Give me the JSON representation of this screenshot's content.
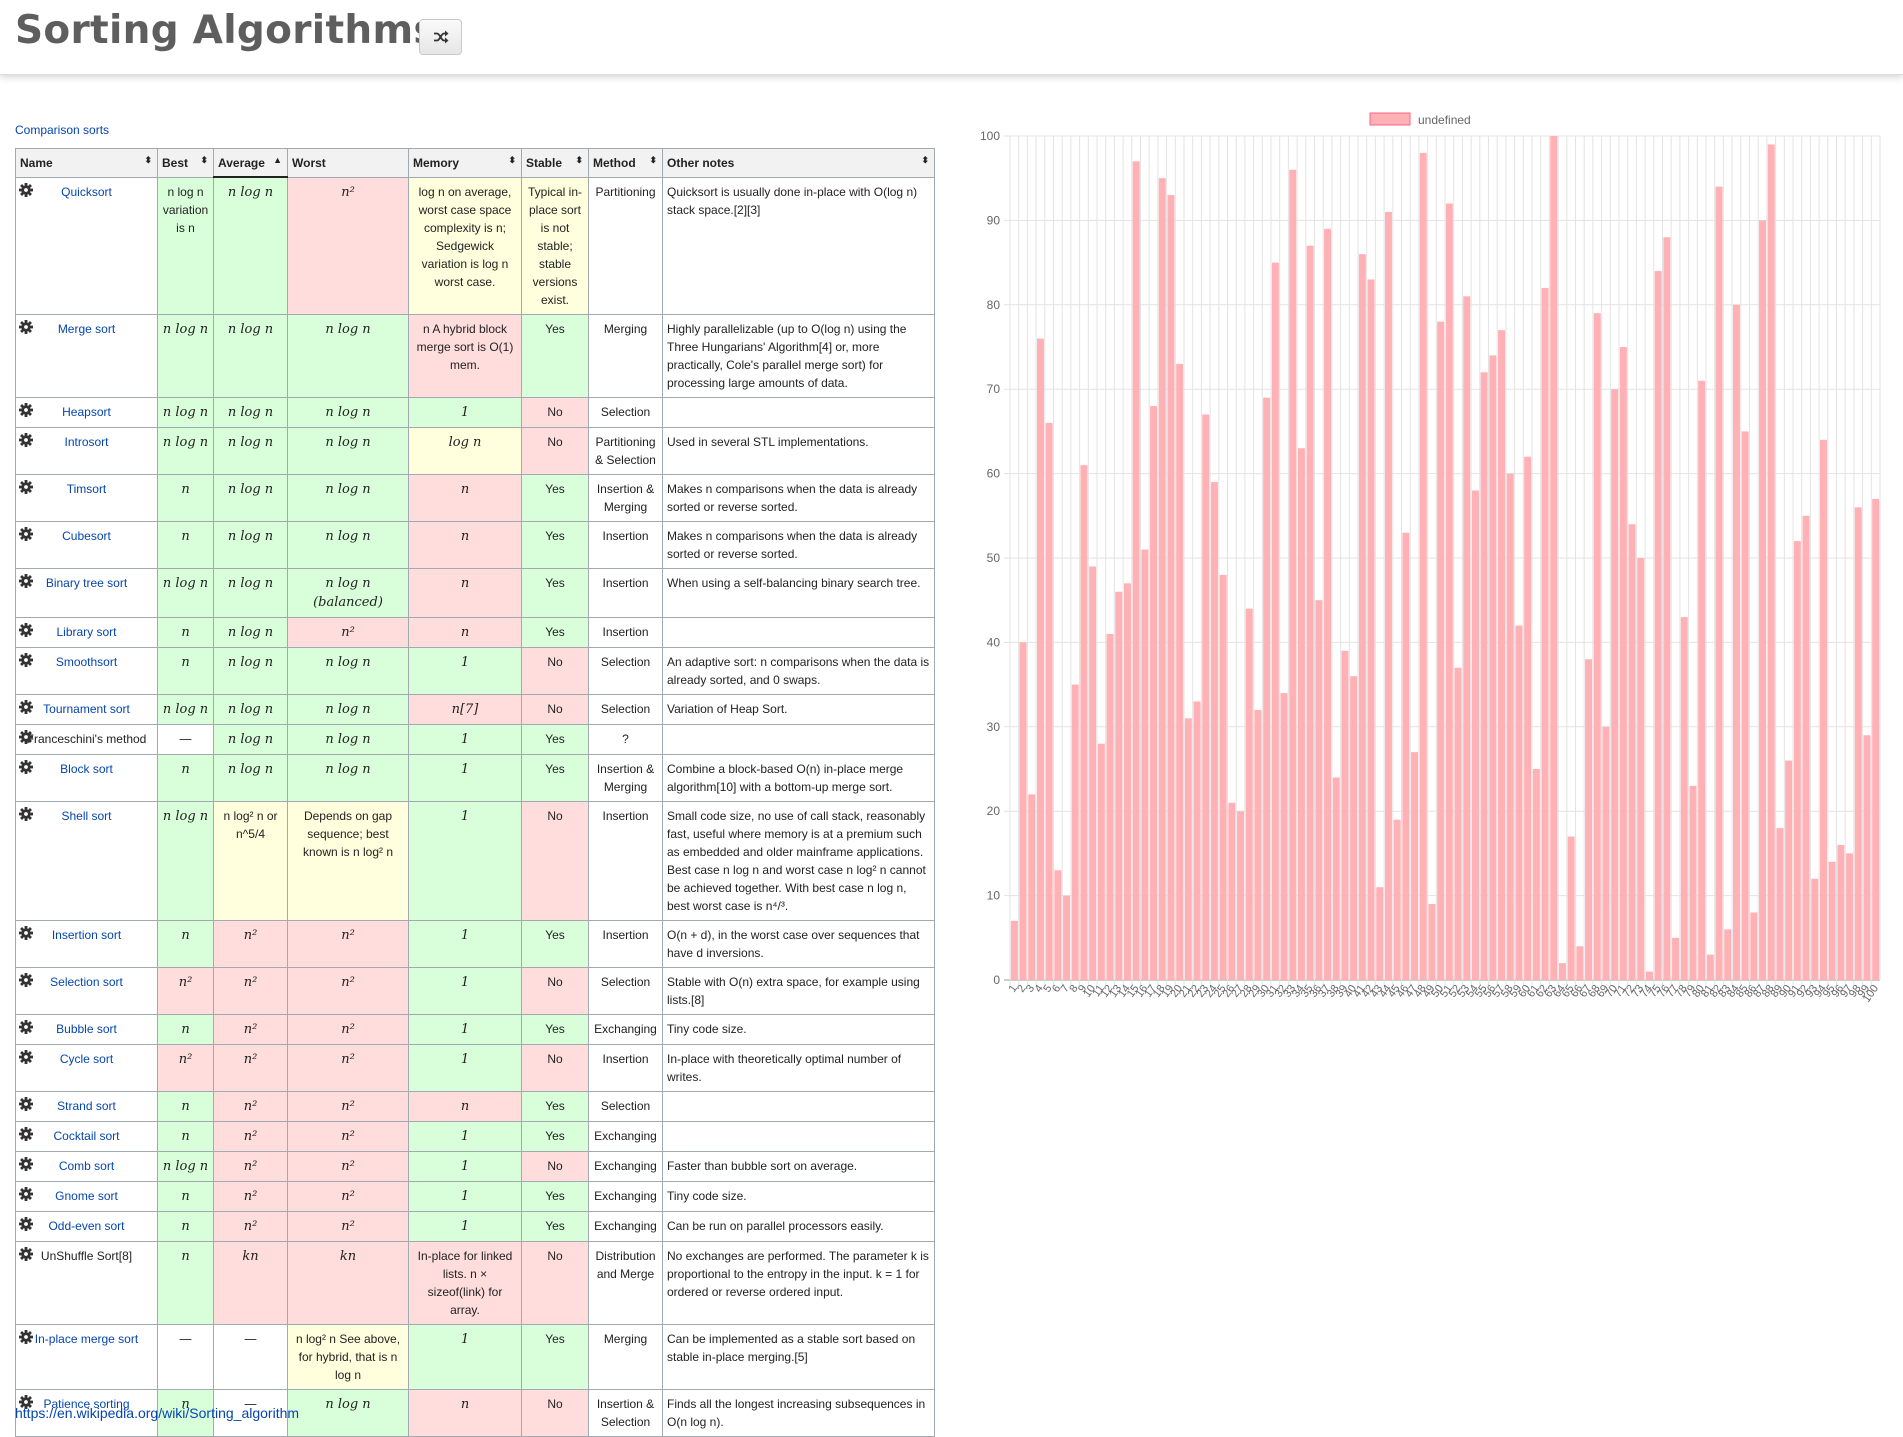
{
  "header": {
    "title": "Sorting Algorithms",
    "shuffle_icon": "shuffle-icon"
  },
  "table": {
    "caption": "Comparison sorts",
    "columns": [
      "Name",
      "Best",
      "Average",
      "Worst",
      "Memory",
      "Stable",
      "Method",
      "Other notes"
    ],
    "sort_indicators": [
      "⬍",
      "⬍",
      "▲",
      "",
      "⬍",
      "⬍",
      "⬍",
      "⬍"
    ],
    "rows": [
      {
        "name": "Quicksort",
        "link": true,
        "best": "n log n variation is n",
        "best_c": "g",
        "avg": "n log n",
        "avg_c": "g",
        "worst": "n²",
        "worst_c": "r",
        "mem": "log n on average, worst case space complexity is n; Sedgewick variation is log n worst case.",
        "mem_c": "y",
        "stable": "Typical in-place sort is not stable; stable versions exist.",
        "stable_c": "y",
        "method": "Partitioning",
        "notes": "Quicksort is usually done in-place with O(log n) stack space.[2][3]"
      },
      {
        "name": "Merge sort",
        "link": true,
        "best": "n log n",
        "best_c": "g",
        "avg": "n log n",
        "avg_c": "g",
        "worst": "n log n",
        "worst_c": "g",
        "mem": "n A hybrid block merge sort is O(1) mem.",
        "mem_c": "r",
        "stable": "Yes",
        "stable_c": "g",
        "method": "Merging",
        "notes": "Highly parallelizable (up to O(log n) using the Three Hungarians' Algorithm[4] or, more practically, Cole's parallel merge sort) for processing large amounts of data."
      },
      {
        "name": "Heapsort",
        "link": true,
        "best": "n log n",
        "best_c": "g",
        "avg": "n log n",
        "avg_c": "g",
        "worst": "n log n",
        "worst_c": "g",
        "mem": "1",
        "mem_c": "g",
        "stable": "No",
        "stable_c": "r",
        "method": "Selection",
        "notes": ""
      },
      {
        "name": "Introsort",
        "link": true,
        "best": "n log n",
        "best_c": "g",
        "avg": "n log n",
        "avg_c": "g",
        "worst": "n log n",
        "worst_c": "g",
        "mem": "log n",
        "mem_c": "y",
        "stable": "No",
        "stable_c": "r",
        "method": "Partitioning & Selection",
        "notes": "Used in several STL implementations."
      },
      {
        "name": "Timsort",
        "link": true,
        "best": "n",
        "best_c": "g",
        "avg": "n log n",
        "avg_c": "g",
        "worst": "n log n",
        "worst_c": "g",
        "mem": "n",
        "mem_c": "r",
        "stable": "Yes",
        "stable_c": "g",
        "method": "Insertion & Merging",
        "notes": "Makes n comparisons when the data is already sorted or reverse sorted."
      },
      {
        "name": "Cubesort",
        "link": true,
        "best": "n",
        "best_c": "g",
        "avg": "n log n",
        "avg_c": "g",
        "worst": "n log n",
        "worst_c": "g",
        "mem": "n",
        "mem_c": "r",
        "stable": "Yes",
        "stable_c": "g",
        "method": "Insertion",
        "notes": "Makes n comparisons when the data is already sorted or reverse sorted."
      },
      {
        "name": "Binary tree sort",
        "link": true,
        "best": "n log n",
        "best_c": "g",
        "avg": "n log n",
        "avg_c": "g",
        "worst": "n log n (balanced)",
        "worst_c": "g",
        "mem": "n",
        "mem_c": "r",
        "stable": "Yes",
        "stable_c": "g",
        "method": "Insertion",
        "notes": "When using a self-balancing binary search tree."
      },
      {
        "name": "Library sort",
        "link": true,
        "best": "n",
        "best_c": "g",
        "avg": "n log n",
        "avg_c": "g",
        "worst": "n²",
        "worst_c": "r",
        "mem": "n",
        "mem_c": "r",
        "stable": "Yes",
        "stable_c": "g",
        "method": "Insertion",
        "notes": ""
      },
      {
        "name": "Smoothsort",
        "link": true,
        "best": "n",
        "best_c": "g",
        "avg": "n log n",
        "avg_c": "g",
        "worst": "n log n",
        "worst_c": "g",
        "mem": "1",
        "mem_c": "g",
        "stable": "No",
        "stable_c": "r",
        "method": "Selection",
        "notes": "An adaptive sort: n comparisons when the data is already sorted, and 0 swaps."
      },
      {
        "name": "Tournament sort",
        "link": true,
        "best": "n log n",
        "best_c": "g",
        "avg": "n log n",
        "avg_c": "g",
        "worst": "n log n",
        "worst_c": "g",
        "mem": "n[7]",
        "mem_c": "r",
        "stable": "No",
        "stable_c": "r",
        "method": "Selection",
        "notes": "Variation of Heap Sort."
      },
      {
        "name": "Franceschini's method",
        "link": false,
        "best": "—",
        "best_c": "",
        "avg": "n log n",
        "avg_c": "g",
        "worst": "n log n",
        "worst_c": "g",
        "mem": "1",
        "mem_c": "g",
        "stable": "Yes",
        "stable_c": "g",
        "method": "?",
        "notes": ""
      },
      {
        "name": "Block sort",
        "link": true,
        "best": "n",
        "best_c": "g",
        "avg": "n log n",
        "avg_c": "g",
        "worst": "n log n",
        "worst_c": "g",
        "mem": "1",
        "mem_c": "g",
        "stable": "Yes",
        "stable_c": "g",
        "method": "Insertion & Merging",
        "notes": "Combine a block-based O(n) in-place merge algorithm[10] with a bottom-up merge sort."
      },
      {
        "name": "Shell sort",
        "link": true,
        "best": "n log n",
        "best_c": "g",
        "avg": "n log² n or n^5/4",
        "avg_c": "y",
        "worst": "Depends on gap sequence; best known is n log² n",
        "worst_c": "y",
        "mem": "1",
        "mem_c": "g",
        "stable": "No",
        "stable_c": "r",
        "method": "Insertion",
        "notes": "Small code size, no use of call stack, reasonably fast, useful where memory is at a premium such as embedded and older mainframe applications. Best case n log n and worst case n log² n cannot be achieved together. With best case n log n, best worst case is n⁴/³."
      },
      {
        "name": "Insertion sort",
        "link": true,
        "best": "n",
        "best_c": "g",
        "avg": "n²",
        "avg_c": "r",
        "worst": "n²",
        "worst_c": "r",
        "mem": "1",
        "mem_c": "g",
        "stable": "Yes",
        "stable_c": "g",
        "method": "Insertion",
        "notes": "O(n + d), in the worst case over sequences that have d inversions."
      },
      {
        "name": "Selection sort",
        "link": true,
        "best": "n²",
        "best_c": "r",
        "avg": "n²",
        "avg_c": "r",
        "worst": "n²",
        "worst_c": "r",
        "mem": "1",
        "mem_c": "g",
        "stable": "No",
        "stable_c": "r",
        "method": "Selection",
        "notes": "Stable with O(n) extra space, for example using lists.[8]"
      },
      {
        "name": "Bubble sort",
        "link": true,
        "best": "n",
        "best_c": "g",
        "avg": "n²",
        "avg_c": "r",
        "worst": "n²",
        "worst_c": "r",
        "mem": "1",
        "mem_c": "g",
        "stable": "Yes",
        "stable_c": "g",
        "method": "Exchanging",
        "notes": "Tiny code size."
      },
      {
        "name": "Cycle sort",
        "link": true,
        "best": "n²",
        "best_c": "r",
        "avg": "n²",
        "avg_c": "r",
        "worst": "n²",
        "worst_c": "r",
        "mem": "1",
        "mem_c": "g",
        "stable": "No",
        "stable_c": "r",
        "method": "Insertion",
        "notes": "In-place with theoretically optimal number of writes."
      },
      {
        "name": "Strand sort",
        "link": true,
        "best": "n",
        "best_c": "g",
        "avg": "n²",
        "avg_c": "r",
        "worst": "n²",
        "worst_c": "r",
        "mem": "n",
        "mem_c": "r",
        "stable": "Yes",
        "stable_c": "g",
        "method": "Selection",
        "notes": ""
      },
      {
        "name": "Cocktail sort",
        "link": true,
        "best": "n",
        "best_c": "g",
        "avg": "n²",
        "avg_c": "r",
        "worst": "n²",
        "worst_c": "r",
        "mem": "1",
        "mem_c": "g",
        "stable": "Yes",
        "stable_c": "g",
        "method": "Exchanging",
        "notes": ""
      },
      {
        "name": "Comb sort",
        "link": true,
        "best": "n log n",
        "best_c": "g",
        "avg": "n²",
        "avg_c": "r",
        "worst": "n²",
        "worst_c": "r",
        "mem": "1",
        "mem_c": "g",
        "stable": "No",
        "stable_c": "r",
        "method": "Exchanging",
        "notes": "Faster than bubble sort on average."
      },
      {
        "name": "Gnome sort",
        "link": true,
        "best": "n",
        "best_c": "g",
        "avg": "n²",
        "avg_c": "r",
        "worst": "n²",
        "worst_c": "r",
        "mem": "1",
        "mem_c": "g",
        "stable": "Yes",
        "stable_c": "g",
        "method": "Exchanging",
        "notes": "Tiny code size."
      },
      {
        "name": "Odd-even sort",
        "link": true,
        "best": "n",
        "best_c": "g",
        "avg": "n²",
        "avg_c": "r",
        "worst": "n²",
        "worst_c": "r",
        "mem": "1",
        "mem_c": "g",
        "stable": "Yes",
        "stable_c": "g",
        "method": "Exchanging",
        "notes": "Can be run on parallel processors easily."
      },
      {
        "name": "UnShuffle Sort[8]",
        "link": false,
        "best": "n",
        "best_c": "g",
        "avg": "kn",
        "avg_c": "r",
        "worst": "kn",
        "worst_c": "r",
        "mem": "In-place for linked lists. n × sizeof(link) for array.",
        "mem_c": "r",
        "stable": "No",
        "stable_c": "r",
        "method": "Distribution and Merge",
        "notes": "No exchanges are performed. The parameter k is proportional to the entropy in the input. k = 1 for ordered or reverse ordered input."
      },
      {
        "name": "In-place merge sort",
        "link": true,
        "best": "—",
        "best_c": "",
        "avg": "—",
        "avg_c": "",
        "worst": "n log² n See above, for hybrid, that is n log n",
        "worst_c": "y",
        "mem": "1",
        "mem_c": "g",
        "stable": "Yes",
        "stable_c": "g",
        "method": "Merging",
        "notes": "Can be implemented as a stable sort based on stable in-place merging.[5]"
      },
      {
        "name": "Patience sorting",
        "link": true,
        "best": "n",
        "best_c": "g",
        "avg": "—",
        "avg_c": "",
        "worst": "n log n",
        "worst_c": "g",
        "mem": "n",
        "mem_c": "r",
        "stable": "No",
        "stable_c": "r",
        "method": "Insertion & Selection",
        "notes": "Finds all the longest increasing subsequences in O(n log n)."
      }
    ]
  },
  "footer": {
    "url": "https://en.wikipedia.org/wiki/Sorting_algorithm"
  },
  "chart_data": {
    "type": "bar",
    "legend": "undefined",
    "legend_position": "top",
    "color": "#ffb1b5",
    "ylim": [
      0,
      100
    ],
    "yticks": [
      0,
      10,
      20,
      30,
      40,
      50,
      60,
      70,
      80,
      90,
      100
    ],
    "grid": true,
    "categories": [
      "1",
      "2",
      "3",
      "4",
      "5",
      "6",
      "7",
      "8",
      "9",
      "10",
      "11",
      "12",
      "13",
      "14",
      "15",
      "16",
      "17",
      "18",
      "19",
      "20",
      "21",
      "22",
      "23",
      "24",
      "25",
      "26",
      "27",
      "28",
      "29",
      "30",
      "31",
      "32",
      "33",
      "34",
      "35",
      "36",
      "37",
      "38",
      "39",
      "40",
      "41",
      "42",
      "43",
      "44",
      "45",
      "46",
      "47",
      "48",
      "49",
      "50",
      "51",
      "52",
      "53",
      "54",
      "55",
      "56",
      "57",
      "58",
      "59",
      "60",
      "61",
      "62",
      "63",
      "64",
      "65",
      "66",
      "67",
      "68",
      "69",
      "70",
      "71",
      "72",
      "73",
      "74",
      "75",
      "76",
      "77",
      "78",
      "79",
      "80",
      "81",
      "82",
      "83",
      "84",
      "85",
      "86",
      "87",
      "88",
      "89",
      "90",
      "91",
      "92",
      "93",
      "94",
      "95",
      "96",
      "97",
      "98",
      "99",
      "100"
    ],
    "values": [
      7,
      40,
      22,
      76,
      66,
      13,
      10,
      35,
      61,
      49,
      28,
      41,
      46,
      47,
      97,
      51,
      68,
      95,
      93,
      73,
      31,
      33,
      67,
      59,
      48,
      21,
      20,
      44,
      32,
      69,
      85,
      34,
      96,
      63,
      87,
      45,
      89,
      24,
      39,
      36,
      86,
      83,
      11,
      91,
      19,
      53,
      27,
      98,
      9,
      78,
      92,
      37,
      81,
      58,
      72,
      74,
      77,
      60,
      42,
      62,
      25,
      82,
      100,
      2,
      17,
      4,
      38,
      79,
      30,
      70,
      75,
      54,
      50,
      1,
      84,
      88,
      5,
      43,
      23,
      71,
      3,
      94,
      6,
      80,
      65,
      8,
      90,
      99,
      18,
      26,
      52,
      55,
      12,
      64,
      14,
      16,
      15,
      56,
      29,
      57
    ]
  }
}
